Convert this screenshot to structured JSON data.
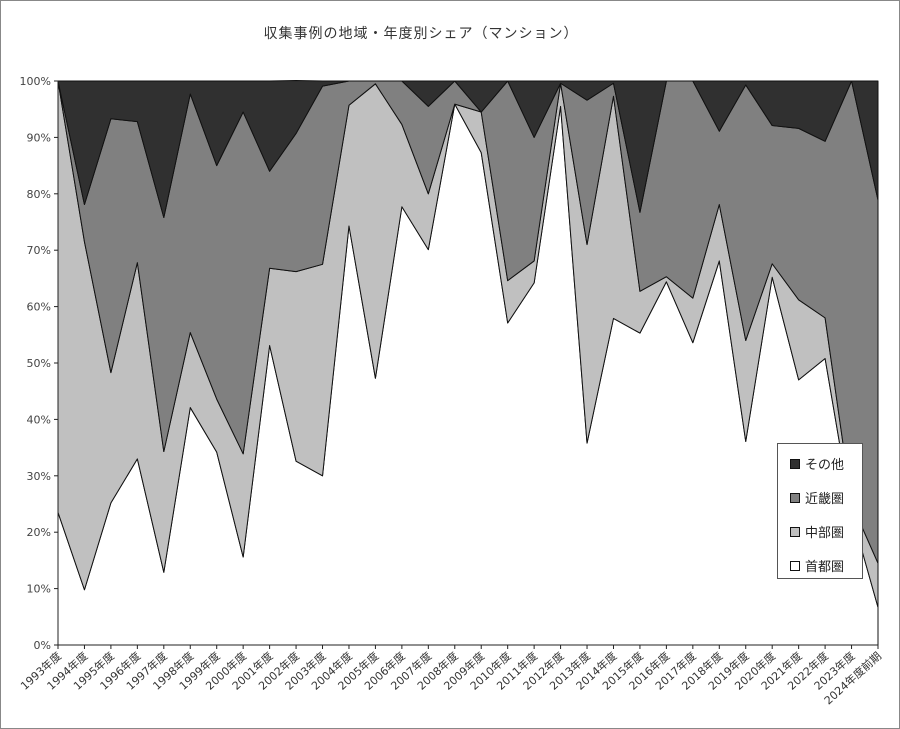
{
  "chart_data": {
    "type": "area",
    "stacked": true,
    "percent": true,
    "title": "収集事例の地域・年度別シェア（マンション）",
    "xlabel": "",
    "ylabel": "",
    "ylim": [
      0,
      100
    ],
    "yticks": [
      0,
      10,
      20,
      30,
      40,
      50,
      60,
      70,
      80,
      90,
      100
    ],
    "ytick_labels": [
      "0%",
      "10%",
      "20%",
      "30%",
      "40%",
      "50%",
      "60%",
      "70%",
      "80%",
      "90%",
      "100%"
    ],
    "grid": false,
    "legend_position": "bottom-right",
    "categories": [
      "1993年度",
      "1994年度",
      "1995年度",
      "1996年度",
      "1997年度",
      "1998年度",
      "1999年度",
      "2000年度",
      "2001年度",
      "2002年度",
      "2003年度",
      "2004年度",
      "2005年度",
      "2006年度",
      "2007年度",
      "2008年度",
      "2009年度",
      "2010年度",
      "2011年度",
      "2012年度",
      "2013年度",
      "2014年度",
      "2015年度",
      "2016年度",
      "2017年度",
      "2018年度",
      "2019年度",
      "2020年度",
      "2021年度",
      "2022年度",
      "2023年度",
      "2024年度前期"
    ],
    "series": [
      {
        "name": "首都圏",
        "color": "#ffffff",
        "values": [
          23.5,
          9.8,
          25.2,
          33.0,
          12.9,
          42.1,
          34.2,
          15.6,
          53.1,
          32.6,
          30.0,
          74.3,
          47.3,
          77.7,
          70.1,
          95.9,
          87.3,
          57.1,
          64.2,
          95.5,
          35.8,
          57.9,
          55.3,
          64.4,
          53.6,
          68.1,
          36.1,
          65.2,
          47.0,
          50.8,
          23.3,
          6.7
        ]
      },
      {
        "name": "中部圏",
        "color": "#c0c0c0",
        "values": [
          76.5,
          61.7,
          23.1,
          34.8,
          21.4,
          13.3,
          9.4,
          18.3,
          13.7,
          33.6,
          37.5,
          21.4,
          52.2,
          14.6,
          9.9,
          0.0,
          7.2,
          7.5,
          3.9,
          4.1,
          35.2,
          39.4,
          7.4,
          0.9,
          7.9,
          10.0,
          17.9,
          2.4,
          14.2,
          7.2,
          1.8,
          7.8
        ]
      },
      {
        "name": "近畿圏",
        "color": "#808080",
        "values": [
          0.0,
          6.6,
          45.0,
          25.0,
          41.5,
          42.3,
          41.4,
          60.6,
          17.2,
          24.5,
          31.6,
          4.3,
          0.5,
          7.7,
          15.5,
          4.1,
          0.0,
          35.4,
          21.9,
          0.0,
          25.6,
          2.3,
          14.0,
          34.7,
          38.5,
          13.0,
          45.3,
          24.5,
          30.4,
          31.3,
          74.9,
          64.4
        ]
      },
      {
        "name": "その他",
        "color": "#303030",
        "values": [
          0.0,
          21.9,
          6.7,
          7.2,
          24.2,
          2.3,
          15.0,
          5.5,
          16.0,
          9.4,
          0.9,
          0.0,
          0.0,
          0.0,
          4.5,
          0.0,
          5.5,
          0.0,
          10.0,
          0.4,
          3.4,
          0.4,
          23.3,
          0.0,
          0.0,
          8.9,
          0.7,
          7.9,
          8.4,
          10.7,
          0.0,
          21.1
        ]
      }
    ]
  }
}
